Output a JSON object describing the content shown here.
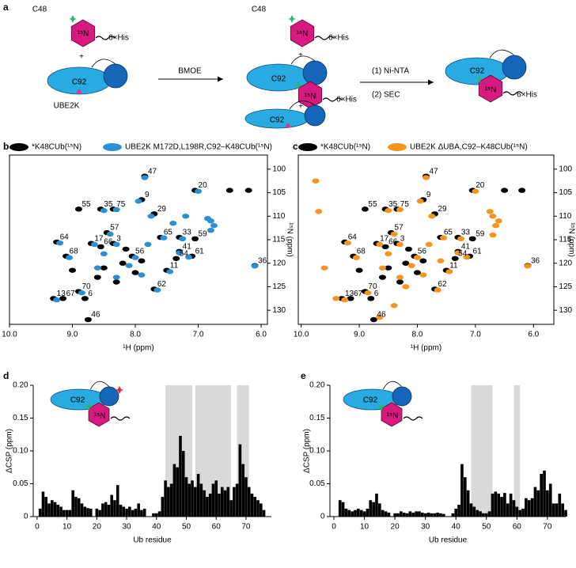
{
  "schematic": {
    "panel_label": "a",
    "texts": [
      "C48",
      "¹⁵N",
      "6×His",
      "+",
      "C92",
      "UBE2K",
      "BMOE",
      "C48",
      "¹⁵N",
      "6×His",
      "+",
      "C92",
      "¹⁵N",
      "6×His",
      "+",
      "C92",
      "(1) Ni-NTA",
      "(2) SEC",
      "C92",
      "¹⁵N",
      "6×His"
    ]
  },
  "chart_data": [
    {
      "type": "scatter",
      "panel_label": "b",
      "x_label": "¹H (ppm)",
      "y_label": "¹⁵N (ppm)",
      "xlim": [
        10.0,
        5.9
      ],
      "ylim": [
        133,
        97
      ],
      "xticks": [
        {
          "value": 10,
          "label": "10.0"
        },
        {
          "value": 9,
          "label": "9.0"
        },
        {
          "value": 8,
          "label": "8.0"
        },
        {
          "value": 7,
          "label": "7.0"
        },
        {
          "value": 6,
          "label": "6.0"
        }
      ],
      "yticks": [
        100,
        105,
        110,
        115,
        120,
        125,
        130
      ],
      "series": [
        {
          "name": "*K48CUb(¹⁵N)",
          "color": "#000000",
          "x": [
            7.85,
            7.05,
            7.9,
            8.9,
            8.55,
            8.35,
            7.7,
            9.25,
            7.6,
            7.3,
            7.05,
            8.45,
            8.7,
            8.35,
            8.55,
            9.1,
            8.05,
            7.3,
            7.35,
            7.1,
            6.1,
            7.5,
            7.7,
            8.9,
            9.3,
            9.15,
            8.8,
            8.75,
            6.5,
            6.2,
            8.2,
            8.0,
            8.3,
            8.5,
            8.15,
            7.9,
            8.6,
            9.0
          ],
          "values": [
            101.5,
            104.5,
            106.5,
            108.5,
            108.5,
            108.5,
            109.5,
            115.5,
            114.5,
            114.5,
            114.8,
            113.5,
            115.8,
            115.8,
            116.5,
            118.5,
            118.5,
            117.5,
            119,
            118.5,
            120.5,
            121.5,
            125.5,
            126,
            127.5,
            127.5,
            127.5,
            132,
            104.5,
            104.5,
            120,
            122,
            124,
            121,
            117,
            119.5,
            123,
            121.5
          ],
          "point_labels": [
            "47",
            "20",
            "9",
            "55",
            "35",
            "75",
            "29",
            "64",
            "65",
            "33",
            "59",
            "57",
            "17",
            "3",
            "66",
            "68",
            "56",
            "41",
            "54",
            "61",
            "36",
            "11",
            "62",
            "70",
            "13",
            "67",
            "6",
            "46",
            null,
            null,
            null,
            null,
            null,
            null,
            null,
            null,
            null,
            null
          ]
        },
        {
          "name": "UBE2K M172D,L198R,C92–K48CUb(¹⁵N)",
          "color": "#2a8fd6",
          "x": [
            7.85,
            7.0,
            7.95,
            8.5,
            8.3,
            7.75,
            6.8,
            6.75,
            6.8,
            6.85,
            9.2,
            7.55,
            7.25,
            8.4,
            8.65,
            8.3,
            9.05,
            8.0,
            7.3,
            7.15,
            6.1,
            7.45,
            7.65,
            8.85,
            9.25,
            8.1,
            7.9,
            8.3,
            8.5,
            7.8,
            8.6,
            7.4,
            7.2
          ],
          "values": [
            101.8,
            104.7,
            106.8,
            108.8,
            108.6,
            110,
            111,
            112,
            113,
            110.5,
            115.7,
            114.6,
            114.8,
            113.8,
            116,
            116,
            118.8,
            118.8,
            117.8,
            118.7,
            120.6,
            121.8,
            125.7,
            126.3,
            127.8,
            120.5,
            122.5,
            123,
            118,
            116,
            121,
            111.5,
            110
          ]
        }
      ]
    },
    {
      "type": "scatter",
      "panel_label": "c",
      "x_label": "¹H (ppm)",
      "y_label": "¹⁵N (ppm)",
      "xlim": [
        10.05,
        5.65
      ],
      "ylim": [
        133,
        97
      ],
      "xticks": [
        {
          "value": 10,
          "label": "10.0"
        },
        {
          "value": 9,
          "label": "9.0"
        },
        {
          "value": 8,
          "label": "8.0"
        },
        {
          "value": 7,
          "label": "7.0"
        },
        {
          "value": 6,
          "label": "6.0"
        }
      ],
      "yticks": [
        100,
        105,
        110,
        115,
        120,
        125,
        130
      ],
      "series": [
        {
          "name": "*K48CUb(¹⁵N)",
          "color": "#000000",
          "x": [
            7.85,
            7.05,
            7.9,
            8.9,
            8.55,
            8.35,
            7.7,
            9.25,
            7.6,
            7.3,
            7.05,
            8.45,
            8.7,
            8.35,
            8.55,
            9.1,
            8.05,
            7.3,
            7.35,
            7.1,
            6.1,
            7.5,
            7.7,
            8.9,
            9.3,
            9.15,
            8.8,
            8.75,
            6.5,
            6.2,
            8.2,
            8.0,
            8.3,
            8.5,
            8.15,
            7.9,
            8.6,
            9.0
          ],
          "values": [
            101.5,
            104.5,
            106.5,
            108.5,
            108.5,
            108.5,
            109.5,
            115.5,
            114.5,
            114.5,
            114.8,
            113.5,
            115.8,
            115.8,
            116.5,
            118.5,
            118.5,
            117.5,
            119,
            118.5,
            120.5,
            121.5,
            125.5,
            126,
            127.5,
            127.5,
            127.5,
            132,
            104.5,
            104.5,
            120,
            122,
            124,
            121,
            117,
            119.5,
            123,
            121.5
          ],
          "point_labels": [
            "47",
            "20",
            "9",
            "55",
            "35",
            "75",
            "29",
            "64",
            "65",
            "33",
            "59",
            "57",
            "17",
            "3",
            "66",
            "68",
            "56",
            "41",
            "54",
            "61",
            "36",
            "11",
            "62",
            "70",
            "13",
            "67",
            "6",
            "46",
            null,
            null,
            null,
            null,
            null,
            null,
            null,
            null,
            null,
            null
          ]
        },
        {
          "name": "UBE2K ΔUBA,C92–K48CUb(¹⁵N)",
          "color": "#f7941d",
          "x": [
            7.85,
            7.0,
            7.95,
            8.5,
            8.3,
            7.75,
            6.7,
            6.65,
            6.7,
            6.6,
            6.75,
            9.2,
            7.55,
            7.25,
            8.4,
            8.65,
            8.3,
            9.05,
            8.0,
            7.3,
            7.15,
            6.1,
            7.45,
            7.65,
            8.85,
            9.25,
            9.4,
            8.1,
            7.9,
            8.3,
            8.5,
            7.8,
            8.6,
            9.75,
            9.7,
            9.6,
            8.65,
            8.4,
            8.2,
            7.6
          ],
          "values": [
            101.8,
            104.7,
            106.8,
            108.8,
            108.6,
            110,
            110,
            112,
            114,
            111,
            109,
            115.7,
            114.6,
            114.8,
            113.8,
            116,
            116,
            118.8,
            118.8,
            117.8,
            118.7,
            120.6,
            121.8,
            125.7,
            126.3,
            127.8,
            127.5,
            120.5,
            122.5,
            123,
            118,
            116,
            121,
            102.5,
            109,
            121,
            131.5,
            129,
            125,
            119.5
          ]
        }
      ]
    },
    {
      "type": "bar",
      "panel_label": "d",
      "x_label": "Ub residue",
      "y_label": "ΔCSP (ppm)",
      "inset_texts": [
        "C92",
        "¹⁵N"
      ],
      "color": "#000000",
      "highlight_color": "#d9d9d9",
      "xlim": [
        -1.3,
        78.5
      ],
      "ylim": [
        0,
        0.2
      ],
      "xticks": [
        0,
        10,
        20,
        30,
        40,
        50,
        60,
        70
      ],
      "yticks": [
        0,
        0.05,
        {
          "value": 0.1,
          "label": "0.10"
        },
        0.15,
        {
          "value": 0.2,
          "label": "0.20"
        }
      ],
      "highlight_ranges": [
        [
          43,
          52
        ],
        [
          53,
          65
        ],
        [
          67,
          71
        ]
      ],
      "x": [
        1,
        2,
        3,
        4,
        5,
        6,
        7,
        8,
        9,
        10,
        11,
        12,
        13,
        14,
        15,
        16,
        17,
        18,
        19,
        20,
        21,
        22,
        23,
        24,
        25,
        26,
        27,
        28,
        29,
        30,
        31,
        32,
        33,
        34,
        35,
        36,
        37,
        38,
        39,
        40,
        41,
        42,
        43,
        44,
        45,
        46,
        47,
        48,
        49,
        50,
        51,
        52,
        53,
        54,
        55,
        56,
        57,
        58,
        59,
        60,
        61,
        62,
        63,
        64,
        65,
        66,
        67,
        68,
        69,
        70,
        71,
        72,
        73,
        74,
        75,
        76
      ],
      "values": [
        0.012,
        0.038,
        0.03,
        0.02,
        0.025,
        0.022,
        0.018,
        0.015,
        0.01,
        0.01,
        0.01,
        0.04,
        0.03,
        0.028,
        0.02,
        0.015,
        0.013,
        0.012,
        null,
        0.012,
        0.01,
        0.02,
        0.022,
        0.018,
        0.033,
        0.025,
        0.048,
        0.018,
        0.015,
        0.012,
        0.015,
        0.01,
        0.012,
        0.02,
        0.01,
        0.012,
        null,
        null,
        0.005,
        0.005,
        0.008,
        0.03,
        0.055,
        0.045,
        0.05,
        0.08,
        0.075,
        0.123,
        0.1,
        0.06,
        0.05,
        0.055,
        0.045,
        0.065,
        0.05,
        0.04,
        0.03,
        0.035,
        0.05,
        0.055,
        0.035,
        0.045,
        0.04,
        0.045,
        0.025,
        0.045,
        0.05,
        0.11,
        0.08,
        0.06,
        0.045,
        0.035,
        0.03,
        0.025,
        0.02,
        0.01
      ]
    },
    {
      "type": "bar",
      "panel_label": "e",
      "x_label": "Ub residue",
      "y_label": "ΔCSP (ppm)",
      "inset_texts": [
        "C92",
        "¹⁵N"
      ],
      "color": "#000000",
      "highlight_color": "#d9d9d9",
      "xlim": [
        -1.3,
        76
      ],
      "ylim": [
        0,
        0.2
      ],
      "xticks": [
        0,
        10,
        20,
        30,
        40,
        50,
        60,
        70
      ],
      "yticks": [
        0,
        0.05,
        {
          "value": 0.1,
          "label": "0.10"
        },
        0.15,
        {
          "value": 0.2,
          "label": "0.20"
        }
      ],
      "highlight_ranges": [
        [
          45,
          52
        ],
        [
          59,
          61
        ]
      ],
      "x": [
        1,
        2,
        3,
        4,
        5,
        6,
        7,
        8,
        9,
        10,
        11,
        12,
        13,
        14,
        15,
        16,
        17,
        18,
        19,
        20,
        21,
        22,
        23,
        24,
        25,
        26,
        27,
        28,
        29,
        30,
        31,
        32,
        33,
        34,
        35,
        36,
        37,
        38,
        39,
        40,
        41,
        42,
        43,
        44,
        45,
        46,
        47,
        48,
        49,
        50,
        51,
        52,
        53,
        54,
        55,
        56,
        57,
        58,
        59,
        60,
        61,
        62,
        63,
        64,
        65,
        66,
        67,
        68,
        69,
        70,
        71,
        72,
        73,
        74,
        75,
        76
      ],
      "values": [
        null,
        0.025,
        0.022,
        0.012,
        0.01,
        0.008,
        0.01,
        0.012,
        0.01,
        0.008,
        0.012,
        0.025,
        0.022,
        0.035,
        0.02,
        0.01,
        0.008,
        0.006,
        null,
        0.005,
        0.005,
        0.008,
        0.006,
        0.005,
        0.008,
        0.006,
        0.008,
        0.008,
        0.006,
        0.005,
        0.006,
        0.005,
        0.005,
        0.006,
        0.005,
        0.004,
        null,
        null,
        0.005,
        0.012,
        0.018,
        0.08,
        0.06,
        0.04,
        0.02,
        0.015,
        0.01,
        0.008,
        0.005,
        0.005,
        0.008,
        0.035,
        0.038,
        0.035,
        0.03,
        0.036,
        0.02,
        0.035,
        0.025,
        0.015,
        0.01,
        0.012,
        0.028,
        0.025,
        0.028,
        0.045,
        0.04,
        0.065,
        0.07,
        0.04,
        0.05,
        0.02,
        0.02,
        0.035,
        0.02,
        0.01
      ]
    }
  ]
}
